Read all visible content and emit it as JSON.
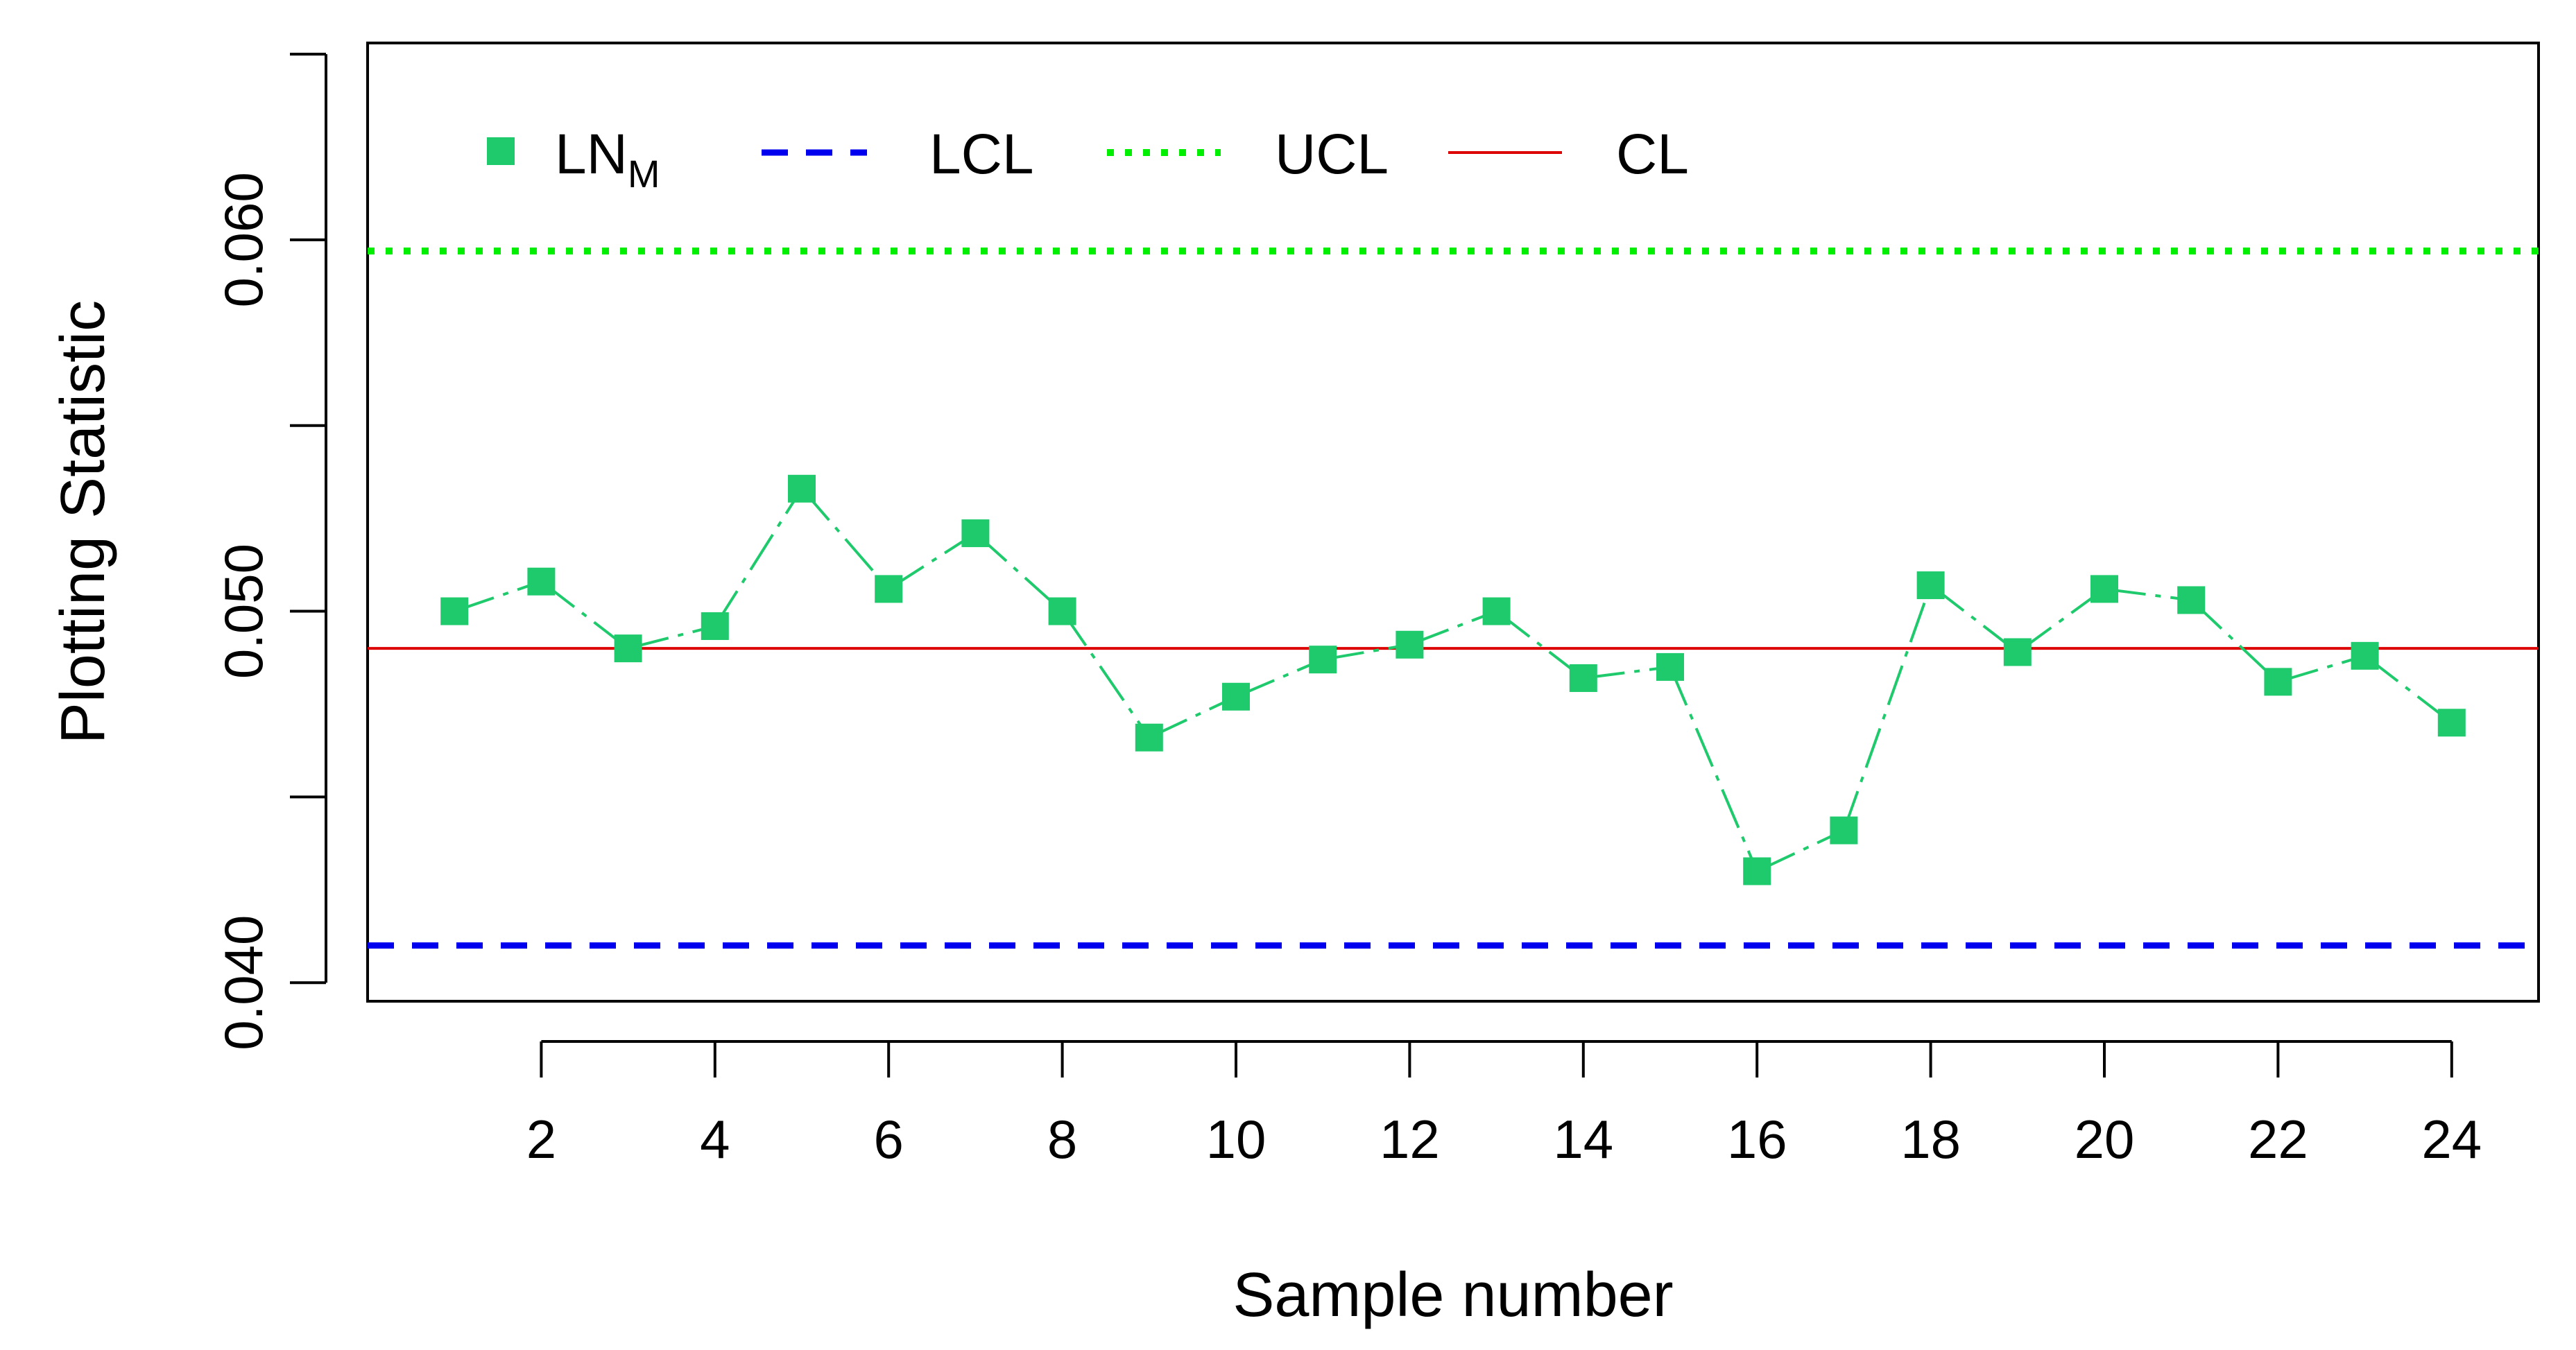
{
  "chart_data": {
    "type": "line",
    "title": "",
    "xlabel": "Sample number",
    "ylabel": "Plotting Statistic",
    "xlim": [
      0,
      25
    ],
    "ylim": [
      0.0395,
      0.0653
    ],
    "x_ticks": [
      2,
      4,
      6,
      8,
      10,
      12,
      14,
      16,
      18,
      20,
      22,
      24
    ],
    "x_tick_labels": [
      "2",
      "4",
      "6",
      "8",
      "10",
      "12",
      "14",
      "16",
      "18",
      "20",
      "22",
      "24"
    ],
    "y_ticks": [
      0.04,
      0.045,
      0.05,
      0.055,
      0.06,
      0.065
    ],
    "y_tick_labels": [
      "0.040",
      "",
      "0.050",
      "",
      "0.060",
      ""
    ],
    "series": [
      {
        "name": "LN",
        "name_sub": "M",
        "color": "#1fca6d",
        "marker": "square",
        "line": "dashdot",
        "x": [
          1,
          2,
          3,
          4,
          5,
          6,
          7,
          8,
          9,
          10,
          11,
          12,
          13,
          14,
          15,
          16,
          17,
          18,
          19,
          20,
          21,
          22,
          23,
          24
        ],
        "values": [
          0.05,
          0.0508,
          0.049,
          0.0496,
          0.0533,
          0.0506,
          0.0521,
          0.05,
          0.0466,
          0.0477,
          0.0487,
          0.0491,
          0.05,
          0.0482,
          0.0485,
          0.043,
          0.0441,
          0.0507,
          0.0489,
          0.0506,
          0.0503,
          0.0481,
          0.0488,
          0.047
        ]
      }
    ],
    "reference_lines": [
      {
        "name": "LCL",
        "value": 0.041,
        "color": "#0000ee",
        "style": "dashed"
      },
      {
        "name": "UCL",
        "value": 0.0597,
        "color": "#00ee00",
        "style": "dotted"
      },
      {
        "name": "CL",
        "value": 0.049,
        "color": "#dd0000",
        "style": "solid"
      }
    ],
    "legend": {
      "placement": "top-left",
      "entries": [
        "LN_M",
        "LCL",
        "UCL",
        "CL"
      ]
    }
  }
}
